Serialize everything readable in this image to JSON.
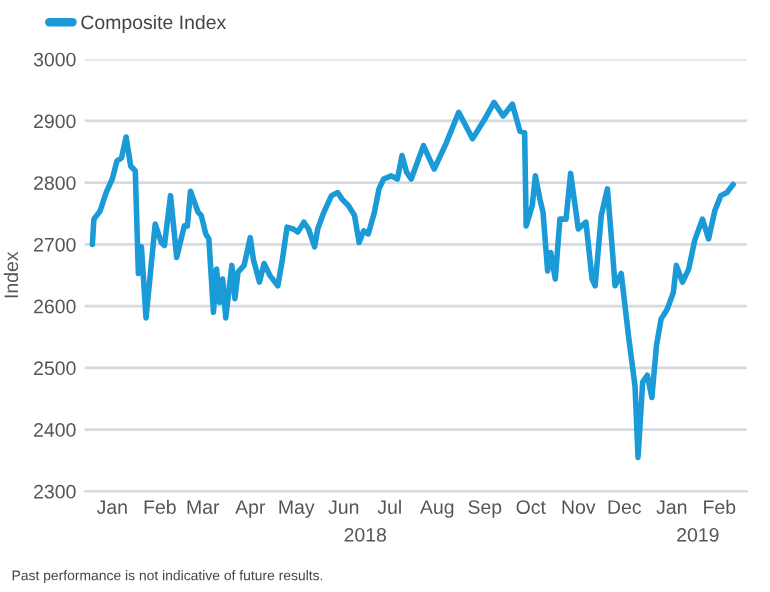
{
  "chart_data": {
    "type": "line",
    "ylabel": "Index",
    "x": [
      "2018-01-02",
      "2018-01-03",
      "2018-01-07",
      "2018-01-11",
      "2018-01-15",
      "2018-01-18",
      "2018-01-21",
      "2018-01-24",
      "2018-01-27",
      "2018-01-30",
      "2018-02-01",
      "2018-02-03",
      "2018-02-06",
      "2018-02-09",
      "2018-02-12",
      "2018-02-16",
      "2018-02-18",
      "2018-02-22",
      "2018-02-26",
      "2018-03-03",
      "2018-03-05",
      "2018-03-07",
      "2018-03-12",
      "2018-03-14",
      "2018-03-17",
      "2018-03-19",
      "2018-03-22",
      "2018-03-24",
      "2018-03-26",
      "2018-03-28",
      "2018-03-30",
      "2018-04-03",
      "2018-04-05",
      "2018-04-07",
      "2018-04-11",
      "2018-04-15",
      "2018-04-17",
      "2018-04-21",
      "2018-04-24",
      "2018-04-28",
      "2018-05-03",
      "2018-05-06",
      "2018-05-09",
      "2018-05-13",
      "2018-05-16",
      "2018-05-20",
      "2018-05-23",
      "2018-05-27",
      "2018-05-29",
      "2018-06-02",
      "2018-06-07",
      "2018-06-11",
      "2018-06-14",
      "2018-06-18",
      "2018-06-22",
      "2018-06-25",
      "2018-06-28",
      "2018-07-01",
      "2018-07-05",
      "2018-07-08",
      "2018-07-11",
      "2018-07-16",
      "2018-07-20",
      "2018-07-23",
      "2018-07-26",
      "2018-07-29",
      "2018-08-06",
      "2018-08-13",
      "2018-08-21",
      "2018-08-29",
      "2018-09-07",
      "2018-09-15",
      "2018-09-21",
      "2018-09-27",
      "2018-10-03",
      "2018-10-08",
      "2018-10-11",
      "2018-10-12",
      "2018-10-16",
      "2018-10-18",
      "2018-10-21",
      "2018-10-23",
      "2018-10-26",
      "2018-10-28",
      "2018-10-31",
      "2018-11-03",
      "2018-11-07",
      "2018-11-10",
      "2018-11-15",
      "2018-11-20",
      "2018-11-24",
      "2018-11-26",
      "2018-11-30",
      "2018-12-04",
      "2018-12-07",
      "2018-12-09",
      "2018-12-13",
      "2018-12-18",
      "2018-12-22",
      "2018-12-24",
      "2018-12-27",
      "2018-12-30",
      "2019-01-02",
      "2019-01-05",
      "2019-01-08",
      "2019-01-12",
      "2019-01-16",
      "2019-01-18",
      "2019-01-22",
      "2019-01-26",
      "2019-01-30",
      "2019-02-04",
      "2019-02-08",
      "2019-02-12",
      "2019-02-16",
      "2019-02-20",
      "2019-02-24"
    ],
    "series": [
      {
        "name": "Composite Index",
        "color": "#1a9ad6",
        "values": [
          2700,
          2741,
          2754,
          2784,
          2806,
          2835,
          2840,
          2874,
          2827,
          2819,
          2653,
          2696,
          2581,
          2657,
          2733,
          2703,
          2698,
          2779,
          2679,
          2730,
          2730,
          2786,
          2752,
          2747,
          2717,
          2709,
          2590,
          2660,
          2606,
          2644,
          2581,
          2666,
          2612,
          2655,
          2666,
          2711,
          2676,
          2639,
          2669,
          2649,
          2633,
          2676,
          2728,
          2725,
          2720,
          2736,
          2725,
          2696,
          2725,
          2752,
          2779,
          2784,
          2773,
          2763,
          2747,
          2703,
          2722,
          2717,
          2752,
          2790,
          2806,
          2811,
          2806,
          2844,
          2817,
          2806,
          2860,
          2822,
          2865,
          2914,
          2871,
          2903,
          2930,
          2908,
          2927,
          2883,
          2881,
          2730,
          2763,
          2811,
          2773,
          2752,
          2657,
          2687,
          2644,
          2741,
          2741,
          2815,
          2725,
          2736,
          2644,
          2633,
          2747,
          2790,
          2698,
          2633,
          2653,
          2547,
          2471,
          2355,
          2477,
          2488,
          2452,
          2536,
          2579,
          2595,
          2622,
          2666,
          2639,
          2660,
          2707,
          2741,
          2709,
          2754,
          2779,
          2784,
          2797
        ]
      }
    ],
    "xlim": [
      "2017-12-28",
      "2019-03-05"
    ],
    "xticks": [
      {
        "value": "2018-01-15",
        "label": "Jan"
      },
      {
        "value": "2018-02-15",
        "label": "Feb"
      },
      {
        "value": "2018-03-15",
        "label": "Mar"
      },
      {
        "value": "2018-04-15",
        "label": "Apr"
      },
      {
        "value": "2018-05-15",
        "label": "May"
      },
      {
        "value": "2018-06-15",
        "label": "Jun"
      },
      {
        "value": "2018-07-15",
        "label": "Jul"
      },
      {
        "value": "2018-08-15",
        "label": "Aug"
      },
      {
        "value": "2018-09-15",
        "label": "Sep"
      },
      {
        "value": "2018-10-15",
        "label": "Oct"
      },
      {
        "value": "2018-11-15",
        "label": "Nov"
      },
      {
        "value": "2018-12-15",
        "label": "Dec"
      },
      {
        "value": "2019-01-15",
        "label": "Jan"
      },
      {
        "value": "2019-02-15",
        "label": "Feb"
      }
    ],
    "ylim": [
      2300,
      3000
    ],
    "yticks": [
      2300,
      2400,
      2500,
      2600,
      2700,
      2800,
      2900,
      3000
    ],
    "grid": "y",
    "legend": "top left",
    "line_style": "solid",
    "marker": "none",
    "x2lim": [
      "2017-12-28",
      "2019-03-05"
    ],
    "x2ticks": [
      {
        "value": "2018-06-29",
        "label": "2018"
      },
      {
        "value": "2019-02-01",
        "label": "2019"
      }
    ],
    "annotations": [
      "Past performance is not indicative of future results."
    ]
  }
}
